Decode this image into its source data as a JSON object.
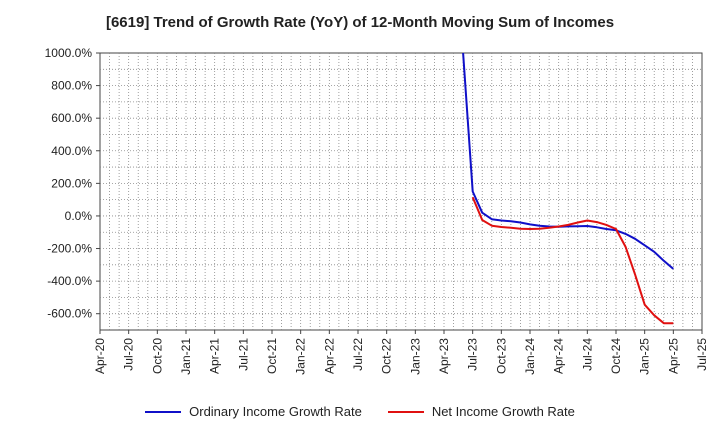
{
  "colors": {
    "ordinary": "#1010c8",
    "net": "#e01010",
    "grid": "#888888",
    "axis": "#444444"
  },
  "chart_data": {
    "type": "line",
    "title": "[6619]  Trend of Growth Rate (YoY) of 12-Month Moving Sum of Incomes",
    "xlabel": "",
    "ylabel": "",
    "ylim": [
      -700,
      1000
    ],
    "yticks": [
      1000,
      800,
      600,
      400,
      200,
      0,
      -200,
      -400,
      -600
    ],
    "ytick_labels": [
      "1000.0%",
      "800.0%",
      "600.0%",
      "400.0%",
      "200.0%",
      "0.0%",
      "-200.0%",
      "-400.0%",
      "-600.0%"
    ],
    "x_range": [
      "2020-04",
      "2025-07"
    ],
    "xtick_labels": [
      "Apr-20",
      "Jul-20",
      "Oct-20",
      "Jan-21",
      "Apr-21",
      "Jul-21",
      "Oct-21",
      "Jan-22",
      "Apr-22",
      "Jul-22",
      "Oct-22",
      "Jan-23",
      "Apr-23",
      "Jul-23",
      "Oct-23",
      "Jan-24",
      "Apr-24",
      "Jul-24",
      "Oct-24",
      "Jan-25",
      "Apr-25",
      "Jul-25"
    ],
    "grid": true,
    "legend_position": "bottom",
    "series": [
      {
        "name": "Ordinary Income Growth Rate",
        "color": "#1010c8",
        "points": [
          [
            "2023-06",
            1000
          ],
          [
            "2023-07",
            150
          ],
          [
            "2023-08",
            20
          ],
          [
            "2023-09",
            -20
          ],
          [
            "2023-10",
            -28
          ],
          [
            "2023-11",
            -33
          ],
          [
            "2023-12",
            -40
          ],
          [
            "2024-01",
            -52
          ],
          [
            "2024-02",
            -60
          ],
          [
            "2024-03",
            -65
          ],
          [
            "2024-04",
            -66
          ],
          [
            "2024-05",
            -64
          ],
          [
            "2024-06",
            -63
          ],
          [
            "2024-07",
            -62
          ],
          [
            "2024-08",
            -70
          ],
          [
            "2024-09",
            -80
          ],
          [
            "2024-10",
            -88
          ],
          [
            "2024-11",
            -110
          ],
          [
            "2024-12",
            -140
          ],
          [
            "2025-01",
            -180
          ],
          [
            "2025-02",
            -220
          ],
          [
            "2025-03",
            -275
          ],
          [
            "2025-04",
            -325
          ]
        ]
      },
      {
        "name": "Net Income Growth Rate",
        "color": "#e01010",
        "points": [
          [
            "2023-07",
            115
          ],
          [
            "2023-08",
            -25
          ],
          [
            "2023-09",
            -60
          ],
          [
            "2023-10",
            -68
          ],
          [
            "2023-11",
            -73
          ],
          [
            "2023-12",
            -78
          ],
          [
            "2024-01",
            -80
          ],
          [
            "2024-02",
            -78
          ],
          [
            "2024-03",
            -73
          ],
          [
            "2024-04",
            -65
          ],
          [
            "2024-05",
            -55
          ],
          [
            "2024-06",
            -40
          ],
          [
            "2024-07",
            -28
          ],
          [
            "2024-08",
            -38
          ],
          [
            "2024-09",
            -55
          ],
          [
            "2024-10",
            -80
          ],
          [
            "2024-11",
            -190
          ],
          [
            "2024-12",
            -360
          ],
          [
            "2025-01",
            -545
          ],
          [
            "2025-02",
            -610
          ],
          [
            "2025-03",
            -658
          ],
          [
            "2025-04",
            -658
          ]
        ]
      }
    ]
  }
}
